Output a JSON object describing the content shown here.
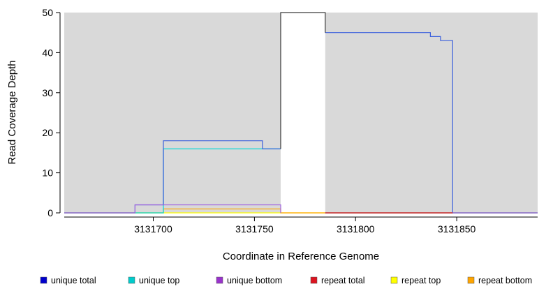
{
  "chart_data": {
    "type": "line",
    "title": "",
    "xlabel": "Coordinate in Reference Genome",
    "ylabel": "Read Coverage Depth",
    "xlim": [
      3131656,
      3131890
    ],
    "ylim": [
      0,
      50
    ],
    "x_ticks": [
      3131700,
      3131750,
      3131800,
      3131850
    ],
    "y_ticks": [
      0,
      10,
      20,
      30,
      40,
      50
    ],
    "grid": "off",
    "legend_position": "bottom",
    "shaded_regions": [
      {
        "x0": 3131656,
        "x1": 3131763,
        "color": "#d9d9d9"
      },
      {
        "x0": 3131785,
        "x1": 3131890,
        "color": "#d9d9d9"
      }
    ],
    "gap_region": {
      "x0": 3131763,
      "x1": 3131785
    },
    "series": [
      {
        "id": "repeat-top",
        "name": "repeat top",
        "color": "#FFFF00",
        "segments": [
          [
            [
              3131656,
              0
            ],
            [
              3131890,
              0
            ]
          ]
        ]
      },
      {
        "id": "repeat-bottom",
        "name": "repeat bottom",
        "color": "#FFA500",
        "segments": [
          [
            [
              3131656,
              0
            ],
            [
              3131705,
              0
            ],
            [
              3131705,
              1
            ],
            [
              3131763,
              1
            ],
            [
              3131763,
              0
            ],
            [
              3131890,
              0
            ]
          ]
        ]
      },
      {
        "id": "unique-top",
        "name": "unique top",
        "color": "#00D8D8",
        "segments": [
          [
            [
              3131656,
              0
            ],
            [
              3131705,
              0
            ],
            [
              3131705,
              16
            ],
            [
              3131763,
              16
            ]
          ],
          [
            [
              3131785,
              0
            ],
            [
              3131890,
              0
            ]
          ]
        ]
      },
      {
        "id": "unique-total",
        "name": "unique total",
        "color": "#3A5FDC",
        "segments": [
          [
            [
              3131656,
              0
            ],
            [
              3131691,
              0
            ],
            [
              3131691,
              2
            ],
            [
              3131705,
              2
            ],
            [
              3131705,
              18
            ],
            [
              3131754,
              18
            ],
            [
              3131754,
              16
            ],
            [
              3131763,
              16
            ]
          ],
          [
            [
              3131785,
              45
            ],
            [
              3131837,
              45
            ],
            [
              3131837,
              44
            ],
            [
              3131842,
              44
            ],
            [
              3131842,
              43
            ],
            [
              3131848,
              43
            ],
            [
              3131848,
              0
            ],
            [
              3131890,
              0
            ]
          ]
        ]
      },
      {
        "id": "unique-bottom",
        "name": "unique bottom",
        "color": "#A064E0",
        "segments": [
          [
            [
              3131656,
              0
            ],
            [
              3131691,
              0
            ],
            [
              3131691,
              2
            ],
            [
              3131763,
              2
            ],
            [
              3131763,
              0
            ]
          ],
          [
            [
              3131785,
              0
            ],
            [
              3131890,
              0
            ]
          ]
        ]
      },
      {
        "id": "repeat-total",
        "name": "repeat total",
        "color": "#DC1420",
        "segments": [
          [
            [
              3131785,
              0
            ],
            [
              3131848,
              0
            ]
          ]
        ]
      }
    ],
    "clipped_segment": {
      "points": [
        [
          3131763,
          16
        ],
        [
          3131763,
          50
        ],
        [
          3131785,
          50
        ],
        [
          3131785,
          45
        ]
      ],
      "color": "#3a3a3a"
    },
    "legend": [
      {
        "label": "unique total",
        "color": "#0000CC"
      },
      {
        "label": "unique top",
        "color": "#00CCCC"
      },
      {
        "label": "unique bottom",
        "color": "#9933CC"
      },
      {
        "label": "repeat total",
        "color": "#DC1420"
      },
      {
        "label": "repeat top",
        "color": "#FFFF00"
      },
      {
        "label": "repeat bottom",
        "color": "#FFA500"
      }
    ]
  }
}
